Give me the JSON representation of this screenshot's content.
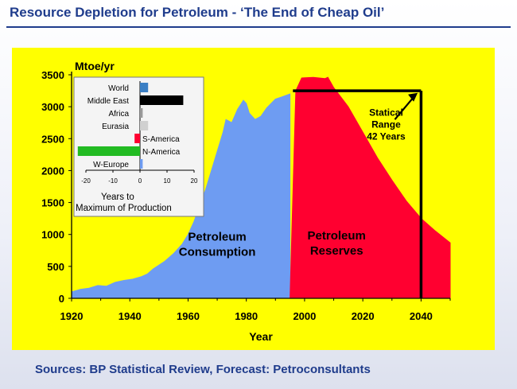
{
  "title": "Resource Depletion for Petroleum - ‘The End of Cheap Oil’",
  "sources": "Sources: BP Statistical Review,  Forecast: Petroconsultants",
  "colors": {
    "title": "#1f3c8c",
    "panel": "#ffff00",
    "consumption": "#6e9cf2",
    "reserves": "#ff0030",
    "axis": "#000000"
  },
  "chart_data": [
    {
      "type": "area",
      "title": "",
      "ylabel": "Mtoe/yr",
      "xlabel": "Year",
      "xlim": [
        1920,
        2050
      ],
      "ylim": [
        0,
        3500
      ],
      "x_ticks": [
        1920,
        1940,
        1960,
        1980,
        2000,
        2020,
        2040
      ],
      "y_ticks": [
        0,
        500,
        1000,
        1500,
        2000,
        2500,
        3000,
        3500
      ],
      "grid": false,
      "series": [
        {
          "name": "Petroleum Consumption",
          "color": "#6e9cf2",
          "points": [
            [
              1920,
              100
            ],
            [
              1923,
              140
            ],
            [
              1926,
              160
            ],
            [
              1929,
              200
            ],
            [
              1932,
              190
            ],
            [
              1935,
              250
            ],
            [
              1938,
              280
            ],
            [
              1941,
              300
            ],
            [
              1944,
              340
            ],
            [
              1946,
              380
            ],
            [
              1948,
              460
            ],
            [
              1950,
              520
            ],
            [
              1952,
              580
            ],
            [
              1955,
              700
            ],
            [
              1958,
              850
            ],
            [
              1960,
              1000
            ],
            [
              1962,
              1200
            ],
            [
              1964,
              1450
            ],
            [
              1966,
              1700
            ],
            [
              1968,
              2000
            ],
            [
              1970,
              2300
            ],
            [
              1972,
              2600
            ],
            [
              1973,
              2800
            ],
            [
              1975,
              2750
            ],
            [
              1977,
              2960
            ],
            [
              1979,
              3100
            ],
            [
              1980,
              3050
            ],
            [
              1981,
              2900
            ],
            [
              1983,
              2800
            ],
            [
              1985,
              2850
            ],
            [
              1987,
              2980
            ],
            [
              1990,
              3120
            ],
            [
              1992,
              3150
            ],
            [
              1995,
              3200
            ]
          ]
        },
        {
          "name": "Petroleum Reserves",
          "color": "#ff0030",
          "points": [
            [
              1995,
              0
            ],
            [
              1997,
              3250
            ],
            [
              1999,
              3450
            ],
            [
              2003,
              3460
            ],
            [
              2007,
              3440
            ],
            [
              2008,
              3460
            ],
            [
              2010,
              3300
            ],
            [
              2015,
              3000
            ],
            [
              2020,
              2600
            ],
            [
              2025,
              2200
            ],
            [
              2030,
              1850
            ],
            [
              2035,
              1520
            ],
            [
              2040,
              1250
            ],
            [
              2045,
              1050
            ],
            [
              2050,
              870
            ]
          ]
        }
      ],
      "annotations": {
        "consumption_label": [
          "Petroleum",
          "Consumption"
        ],
        "reserves_label": [
          "Petroleum",
          "Reserves"
        ],
        "range_label": [
          "Statical",
          "Range",
          "42 Years"
        ],
        "range_start_year": 1996,
        "range_end_year": 2040,
        "range_level": 3250
      }
    },
    {
      "type": "bar",
      "orientation": "horizontal",
      "title": "",
      "xlabel": [
        "Years to",
        "Maximum of Production"
      ],
      "xlim": [
        -20,
        20
      ],
      "x_ticks": [
        -20,
        -10,
        0,
        10,
        20
      ],
      "categories": [
        "World",
        "Middle East",
        "Africa",
        "Eurasia",
        "S-America",
        "N-America",
        "W-Europe"
      ],
      "values": [
        3,
        16,
        1,
        3,
        -2,
        -23,
        1
      ],
      "colors": [
        "#3b7fc4",
        "#000000",
        "#9a9a9a",
        "#d0d0d0",
        "#ff0030",
        "#22bb22",
        "#6e9cf2"
      ]
    }
  ]
}
